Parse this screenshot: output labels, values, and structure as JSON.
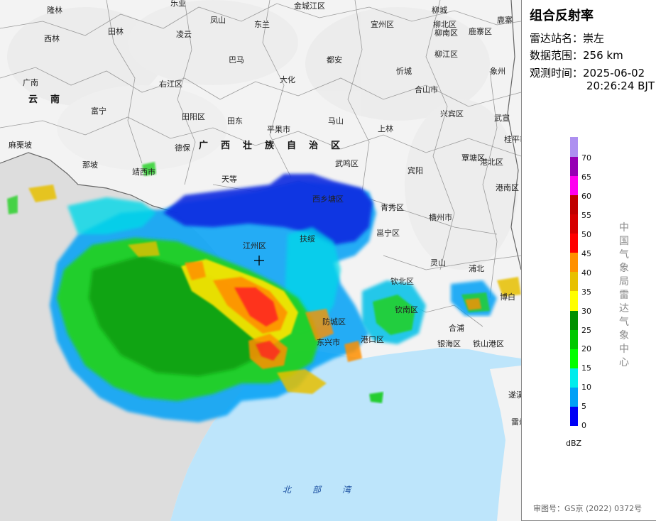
{
  "panel": {
    "title": "组合反射率",
    "station_label": "雷达站名：",
    "station_value": "崇左",
    "range_label": "数据范围：",
    "range_value": "256 km",
    "time_label": "观测时间：",
    "time_date": "2025-06-02",
    "time_clock": "20:26:24 BJT",
    "agency": "中国气象局雷达气象中心",
    "legend_unit": "dBZ",
    "approval": "审图号：GS京 (2022) 0372号"
  },
  "legend": [
    {
      "value": "0",
      "color": "#0000f6"
    },
    {
      "value": "5",
      "color": "#01a0f6"
    },
    {
      "value": "10",
      "color": "#00ecec"
    },
    {
      "value": "15",
      "color": "#01ff00"
    },
    {
      "value": "20",
      "color": "#00c800"
    },
    {
      "value": "25",
      "color": "#019000"
    },
    {
      "value": "30",
      "color": "#ffff00"
    },
    {
      "value": "35",
      "color": "#e7c000"
    },
    {
      "value": "40",
      "color": "#ff9000"
    },
    {
      "value": "45",
      "color": "#ff0000"
    },
    {
      "value": "50",
      "color": "#d60000"
    },
    {
      "value": "55",
      "color": "#c00000"
    },
    {
      "value": "60",
      "color": "#ff00f0"
    },
    {
      "value": "65",
      "color": "#9600b4"
    },
    {
      "value": "70",
      "color": "#ad90f0"
    }
  ],
  "map": {
    "region_name": "广西壮族自治区",
    "province_yunnan": "云南",
    "sea_name": "北部湾",
    "cities": [
      "隆林",
      "乐业",
      "金城江区",
      "柳城",
      "鹿寨",
      "西林",
      "田林",
      "凌云",
      "凤山",
      "东兰",
      "宜州区",
      "柳北区",
      "柳南区",
      "广南",
      "巴马",
      "都安",
      "鹿寨区",
      "柳江区",
      "象州",
      "右江区",
      "大化",
      "忻城",
      "合山市",
      "富宁",
      "田阳区",
      "平果市",
      "马山",
      "兴宾区",
      "武宣",
      "田东",
      "上林",
      "麻栗坡",
      "德保",
      "那坡",
      "靖西市",
      "天等",
      "武鸣区",
      "宾阳",
      "覃塘区",
      "港北区",
      "桂平市",
      "西乡塘区",
      "青秀区",
      "港南区",
      "江州区",
      "扶绥",
      "邕宁区",
      "横州市",
      "灵山",
      "钦北区",
      "浦北",
      "博白",
      "钦南区",
      "合浦",
      "防城区",
      "港口区",
      "东兴市",
      "银海区",
      "铁山港区",
      "遂溪",
      "雷州市"
    ]
  }
}
